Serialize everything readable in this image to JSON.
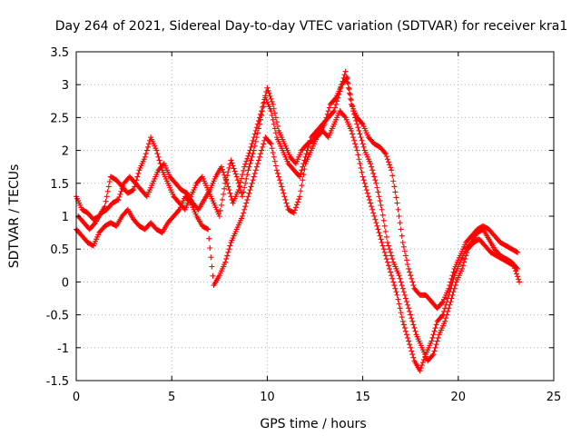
{
  "chart_data": {
    "type": "scatter",
    "title": "Day 264 of 2021, Sidereal Day-to-day VTEC variation (SDTVAR) for receiver kra1",
    "xlabel": "GPS time / hours",
    "ylabel": "SDTVAR / TECUs",
    "xlim": [
      0,
      25
    ],
    "ylim": [
      -1.5,
      3.5
    ],
    "x_ticks": [
      0,
      5,
      10,
      15,
      20,
      25
    ],
    "y_ticks": [
      -1.5,
      -1,
      -0.5,
      0,
      0.5,
      1,
      1.5,
      2,
      2.5,
      3,
      3.5
    ],
    "grid": true,
    "marker": "plus",
    "color": "#ff0000",
    "series": [
      {
        "x": [
          0.0,
          0.3,
          0.6,
          0.9,
          1.2,
          1.5,
          1.8,
          2.1,
          2.4,
          2.7,
          3.0,
          3.3,
          3.6,
          3.9,
          4.2,
          4.5,
          4.8,
          5.1,
          5.4,
          5.7,
          6.0,
          6.3,
          6.6,
          6.9,
          7.2,
          7.5,
          7.8,
          8.1,
          8.4,
          8.7,
          9.0,
          9.3,
          9.6,
          9.9,
          10.2,
          10.5,
          10.8,
          11.1,
          11.4,
          11.7,
          12.0,
          12.3,
          12.6,
          12.9,
          13.2,
          13.5,
          13.8,
          14.1,
          14.4,
          14.7,
          15.0,
          15.3,
          15.6,
          15.9,
          16.2,
          16.5,
          16.8,
          17.1,
          17.4,
          17.7,
          18.0,
          18.3,
          18.6,
          18.9,
          19.2,
          19.5,
          19.8,
          20.1,
          20.4,
          20.7,
          21.0,
          21.3,
          21.6,
          21.9,
          22.2,
          22.5,
          22.8,
          23.1
        ],
        "y": [
          1.3,
          1.1,
          1.05,
          0.95,
          1.0,
          1.15,
          1.6,
          1.55,
          1.45,
          1.35,
          1.4,
          1.7,
          1.9,
          2.2,
          2.0,
          1.7,
          1.5,
          1.3,
          1.2,
          1.1,
          1.3,
          1.5,
          1.6,
          1.4,
          1.2,
          1.0,
          1.5,
          1.85,
          1.6,
          1.3,
          1.7,
          2.0,
          2.4,
          2.8,
          2.6,
          2.2,
          2.0,
          1.8,
          1.7,
          1.6,
          1.9,
          2.2,
          2.3,
          2.4,
          2.5,
          2.6,
          2.9,
          3.2,
          2.7,
          2.5,
          2.4,
          2.2,
          2.1,
          2.05,
          1.95,
          1.7,
          1.2,
          0.6,
          0.2,
          -0.1,
          -0.2,
          -0.2,
          -0.3,
          -0.4,
          -0.3,
          -0.1,
          0.2,
          0.4,
          0.6,
          0.7,
          0.8,
          0.85,
          0.8,
          0.7,
          0.6,
          0.55,
          0.5,
          0.45
        ]
      },
      {
        "x": [
          0.0,
          0.3,
          0.6,
          0.9,
          1.2,
          1.5,
          1.8,
          2.1,
          2.4,
          2.7,
          3.0,
          3.3,
          3.6,
          3.9,
          4.2,
          4.5,
          4.8,
          5.1,
          5.4,
          5.7,
          6.0,
          6.3,
          6.6,
          6.9,
          7.2,
          7.5,
          7.8,
          8.1,
          8.4,
          8.7,
          9.0,
          9.3,
          9.6,
          9.9,
          10.2,
          10.5,
          10.8,
          11.1,
          11.4,
          11.7,
          12.0,
          12.3,
          12.6,
          12.9,
          13.2,
          13.5,
          13.8,
          14.1,
          14.4,
          14.7,
          15.0,
          15.3,
          15.6,
          15.9,
          16.2,
          16.5,
          16.8,
          17.1,
          17.4,
          17.7,
          18.0,
          18.3,
          18.6,
          18.9,
          19.2,
          19.5,
          19.8,
          20.1,
          20.4,
          20.7,
          21.0,
          21.3,
          21.6,
          21.9,
          22.2,
          22.5,
          22.8,
          23.1
        ],
        "y": [
          0.8,
          0.7,
          0.6,
          0.55,
          0.75,
          0.85,
          0.9,
          0.85,
          1.0,
          1.1,
          0.95,
          0.85,
          0.8,
          0.9,
          0.8,
          0.75,
          0.9,
          1.0,
          1.1,
          1.3,
          1.2,
          1.0,
          0.85,
          0.8,
          -0.05,
          0.1,
          0.3,
          0.6,
          0.8,
          1.0,
          1.3,
          1.6,
          1.9,
          2.2,
          2.1,
          1.7,
          1.4,
          1.1,
          1.05,
          1.3,
          1.8,
          2.0,
          2.2,
          2.3,
          2.2,
          2.4,
          2.6,
          2.5,
          2.3,
          2.0,
          1.6,
          1.3,
          1.0,
          0.7,
          0.4,
          0.1,
          -0.2,
          -0.6,
          -0.9,
          -1.2,
          -1.35,
          -1.1,
          -0.9,
          -0.6,
          -0.5,
          -0.2,
          0.1,
          0.3,
          0.5,
          0.6,
          0.75,
          0.8,
          0.65,
          0.5,
          0.4,
          0.35,
          0.3,
          0.2
        ]
      },
      {
        "x": [
          0.1,
          0.4,
          0.7,
          1.0,
          1.3,
          1.6,
          1.9,
          2.2,
          2.5,
          2.8,
          3.1,
          3.4,
          3.7,
          4.0,
          4.3,
          4.6,
          4.9,
          5.2,
          5.5,
          5.8,
          6.1,
          6.4,
          6.7,
          7.0,
          7.3,
          7.6,
          7.9,
          8.2,
          8.5,
          8.8,
          9.1,
          9.4,
          9.7,
          10.0,
          10.3,
          10.6,
          10.9,
          11.2,
          11.5,
          11.8,
          12.1,
          12.4,
          12.7,
          13.0,
          13.3,
          13.6,
          13.9,
          14.2,
          14.5,
          14.8,
          15.1,
          15.4,
          15.7,
          16.0,
          16.3,
          16.6,
          16.9,
          17.2,
          17.5,
          17.8,
          18.1,
          18.4,
          18.7,
          19.0,
          19.3,
          19.6,
          19.9,
          20.2,
          20.5,
          20.8,
          21.1,
          21.4,
          21.7,
          22.0,
          22.3,
          22.6,
          22.9,
          23.2
        ],
        "y": [
          1.0,
          0.9,
          0.8,
          0.9,
          1.05,
          1.1,
          1.2,
          1.25,
          1.5,
          1.6,
          1.5,
          1.4,
          1.3,
          1.5,
          1.7,
          1.8,
          1.6,
          1.5,
          1.4,
          1.35,
          1.2,
          1.1,
          1.25,
          1.4,
          1.6,
          1.75,
          1.5,
          1.2,
          1.4,
          1.75,
          2.0,
          2.3,
          2.6,
          2.95,
          2.7,
          2.3,
          2.1,
          1.9,
          1.8,
          2.0,
          2.1,
          2.15,
          2.25,
          2.4,
          2.7,
          2.8,
          3.0,
          3.1,
          2.6,
          2.3,
          2.0,
          1.8,
          1.5,
          1.1,
          0.6,
          0.3,
          0.1,
          -0.2,
          -0.5,
          -0.8,
          -1.0,
          -1.2,
          -1.1,
          -0.8,
          -0.6,
          -0.3,
          0.0,
          0.2,
          0.5,
          0.6,
          0.65,
          0.55,
          0.45,
          0.4,
          0.35,
          0.3,
          0.25,
          0.0
        ]
      }
    ]
  }
}
